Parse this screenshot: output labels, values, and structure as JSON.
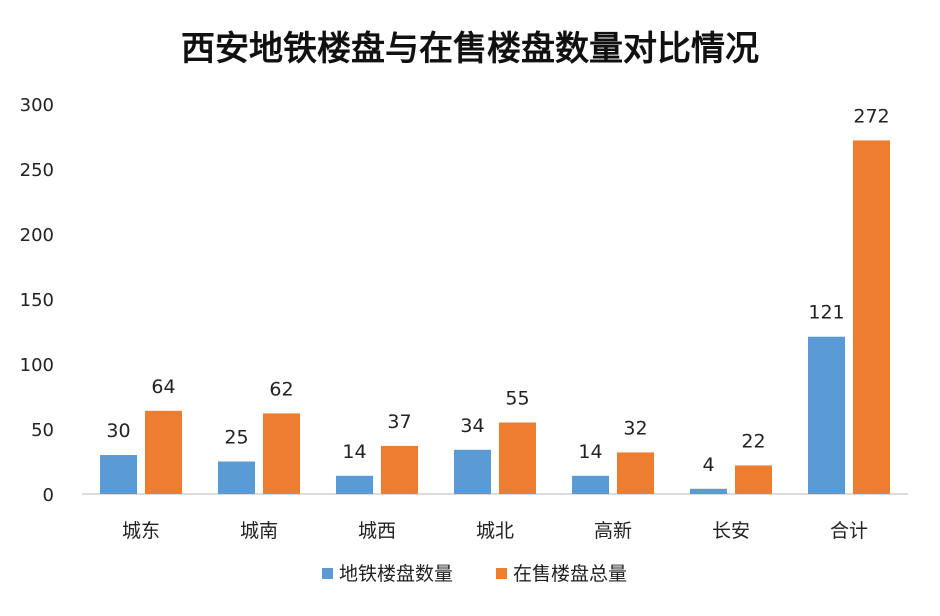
{
  "chart_data": {
    "type": "bar",
    "title": "西安地铁楼盘与在售楼盘数量对比情况",
    "categories": [
      "城东",
      "城南",
      "城西",
      "城北",
      "高新",
      "长安",
      "合计"
    ],
    "series": [
      {
        "name": "地铁楼盘数量",
        "values": [
          30,
          25,
          14,
          34,
          14,
          4,
          121
        ],
        "color": "#5B9BD5"
      },
      {
        "name": "在售楼盘总量",
        "values": [
          64,
          62,
          37,
          55,
          32,
          22,
          272
        ],
        "color": "#ED7D31"
      }
    ],
    "yticks": [
      "0",
      "50",
      "100",
      "150",
      "200",
      "250",
      "300"
    ],
    "ylim": [
      0,
      300
    ],
    "grid": false,
    "legend_position": "bottom"
  }
}
